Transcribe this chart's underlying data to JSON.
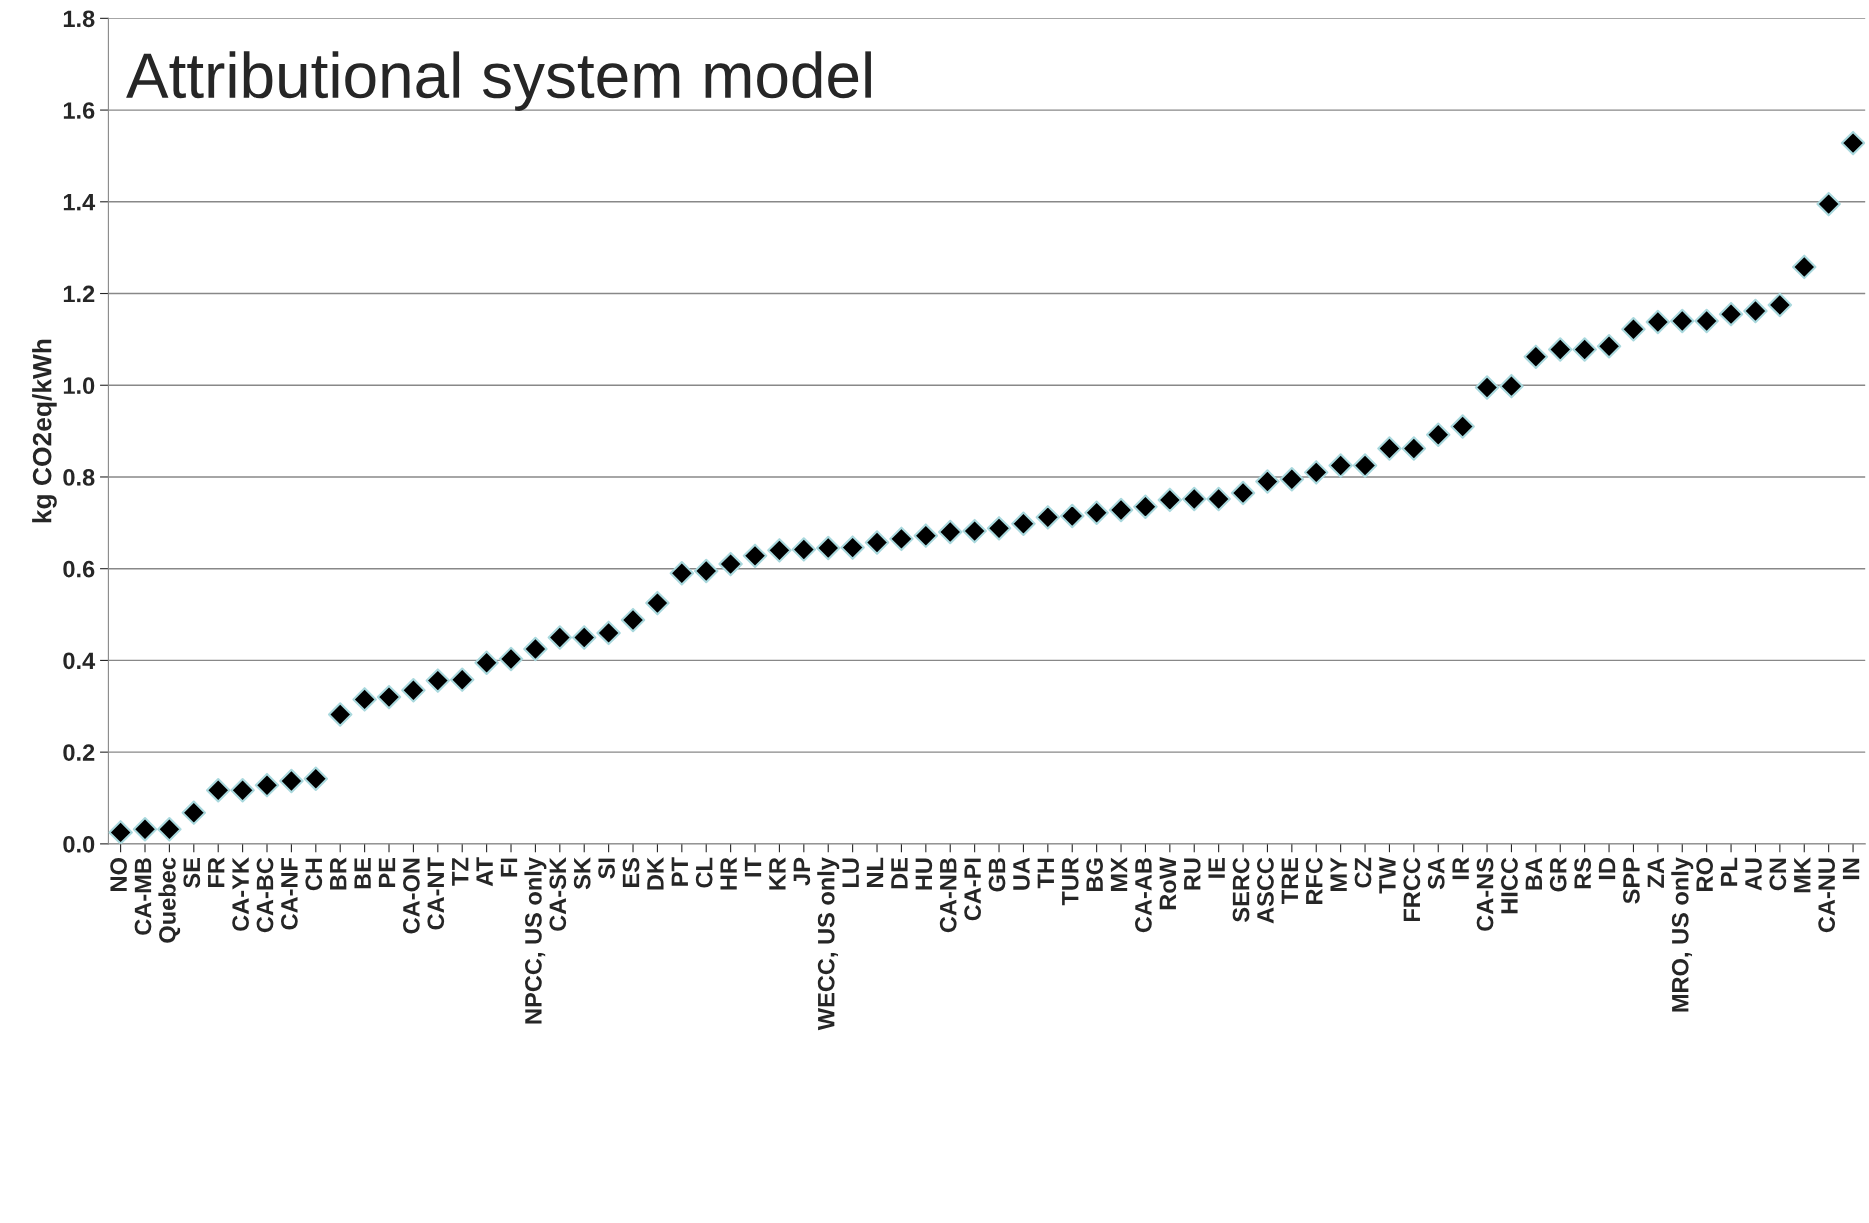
{
  "chart_data": {
    "type": "scatter",
    "title": "Attributional system model",
    "ylabel": "kg CO2eq/kWh",
    "categories": [
      "NO",
      "CA-MB",
      "Quebec",
      "SE",
      "FR",
      "CA-YK",
      "CA-BC",
      "CA-NF",
      "CH",
      "BR",
      "BE",
      "PE",
      "CA-ON",
      "CA-NT",
      "TZ",
      "AT",
      "FI",
      "NPCC, US only",
      "CA-SK",
      "SK",
      "SI",
      "ES",
      "DK",
      "PT",
      "CL",
      "HR",
      "IT",
      "KR",
      "JP",
      "WECC, US only",
      "LU",
      "NL",
      "DE",
      "HU",
      "CA-NB",
      "CA-PI",
      "GB",
      "UA",
      "TH",
      "TUR",
      "BG",
      "MX",
      "CA-AB",
      "RoW",
      "RU",
      "IE",
      "SERC",
      "ASCC",
      "TRE",
      "RFC",
      "MY",
      "CZ",
      "TW",
      "FRCC",
      "SA",
      "IR",
      "CA-NS",
      "HICC",
      "BA",
      "GR",
      "RS",
      "ID",
      "SPP",
      "ZA",
      "MRO, US only",
      "RO",
      "PL",
      "AU",
      "CN",
      "MK",
      "CA-NU",
      "IN"
    ],
    "values": [
      0.025,
      0.032,
      0.032,
      0.068,
      0.117,
      0.117,
      0.128,
      0.137,
      0.142,
      0.282,
      0.315,
      0.32,
      0.335,
      0.356,
      0.358,
      0.395,
      0.403,
      0.425,
      0.45,
      0.45,
      0.46,
      0.488,
      0.525,
      0.59,
      0.595,
      0.61,
      0.628,
      0.64,
      0.642,
      0.645,
      0.646,
      0.657,
      0.665,
      0.672,
      0.68,
      0.682,
      0.688,
      0.698,
      0.712,
      0.715,
      0.722,
      0.728,
      0.735,
      0.75,
      0.752,
      0.752,
      0.765,
      0.79,
      0.795,
      0.81,
      0.825,
      0.825,
      0.862,
      0.862,
      0.892,
      0.91,
      0.995,
      0.998,
      1.062,
      1.078,
      1.078,
      1.085,
      1.122,
      1.138,
      1.14,
      1.14,
      1.155,
      1.162,
      1.175,
      1.258,
      1.395,
      1.528
    ],
    "color": "#000000",
    "marker": "diamond",
    "grid": "y",
    "ylim": [
      0,
      1.8
    ],
    "yticks": [
      {
        "value": 0,
        "label": "0.0"
      },
      {
        "value": 0.2,
        "label": "0.2"
      },
      {
        "value": 0.4,
        "label": "0.4"
      },
      {
        "value": 0.6,
        "label": "0.6"
      },
      {
        "value": 0.8,
        "label": "0.8"
      },
      {
        "value": 1.0,
        "label": "1.0"
      },
      {
        "value": 1.2,
        "label": "1.2"
      },
      {
        "value": 1.4,
        "label": "1.4"
      },
      {
        "value": 1.6,
        "label": "1.6"
      },
      {
        "value": 1.8,
        "label": "1.8"
      }
    ]
  }
}
